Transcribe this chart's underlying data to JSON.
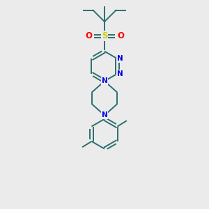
{
  "background_color": "#ebebeb",
  "bond_color": "#2d6e6e",
  "N_color": "#0000ee",
  "S_color": "#cccc00",
  "O_color": "#ff0000",
  "figsize": [
    3.0,
    3.0
  ],
  "dpi": 100,
  "xlim": [
    0,
    10
  ],
  "ylim": [
    0,
    10
  ],
  "lw": 1.4
}
